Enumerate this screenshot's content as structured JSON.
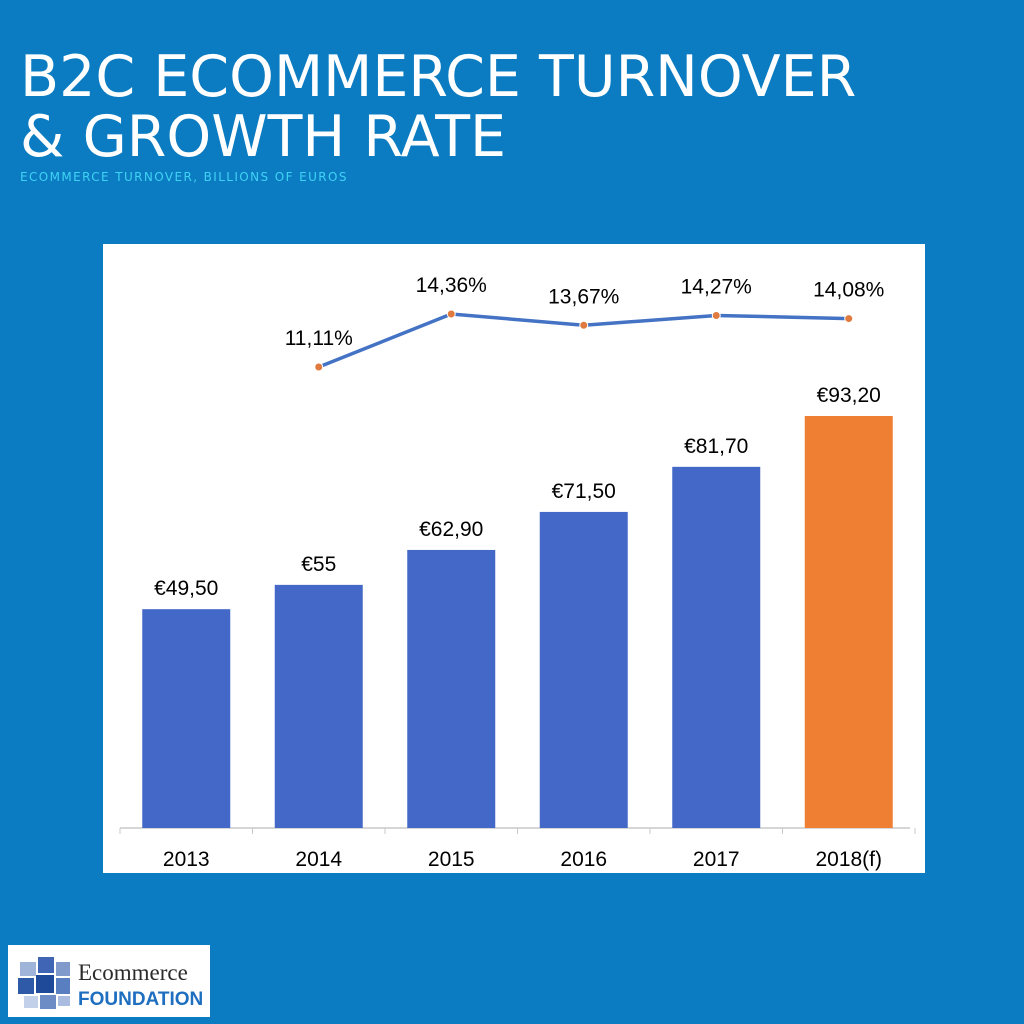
{
  "chart_data": {
    "type": "bar_line",
    "title": [
      "B2C ECOMMERCE TURNOVER",
      "& GROWTH RATE"
    ],
    "subtitle": "ECOMMERCE TURNOVER, BILLIONS OF EUROS",
    "categories": [
      "2013",
      "2014",
      "2015",
      "2016",
      "2017",
      "2018(f)"
    ],
    "series": [
      {
        "type": "bar",
        "colors": [
          "#4368c7",
          "#4368c7",
          "#4368c7",
          "#4368c7",
          "#4368c7",
          "#ee7f33"
        ],
        "values": [
          49.5,
          55,
          62.9,
          71.5,
          81.7,
          93.2
        ],
        "value_labels": [
          "€49,50",
          "€55",
          "€62,90",
          "€71,50",
          "€81,70",
          "€93,20"
        ]
      },
      {
        "type": "line",
        "color": "#4472c4",
        "marker_color": "#e07a3e",
        "values": [
          null,
          11.11,
          14.36,
          13.67,
          14.27,
          14.08
        ],
        "value_labels": [
          null,
          "11,11%",
          "14,36%",
          "13,67%",
          "14,27%",
          "14,08%"
        ]
      }
    ]
  },
  "logo": {
    "name": "Ecommerce",
    "tagline": "FOUNDATION"
  }
}
